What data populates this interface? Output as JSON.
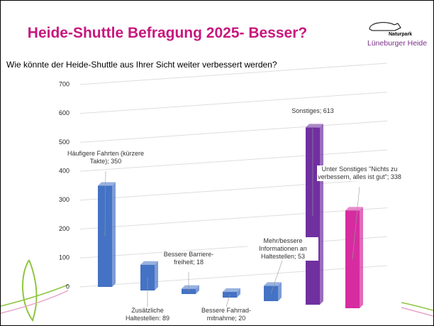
{
  "title": "Heide-Shuttle Befragung 2025- Besser?",
  "logo": {
    "line1": "Naturpark",
    "line2": "Lüneburger Heide"
  },
  "chart_data": {
    "type": "bar",
    "title": "Wie könnte der Heide-Shuttle aus Ihrer Sicht weiter verbessert werden?",
    "values": [
      350,
      89,
      18,
      20,
      53,
      613,
      338
    ],
    "value_labels": [
      "Häufigere Fahrten (kürzere Takte); 350",
      "Zusätzliche Haltestellen: 89",
      "Bessere Barriere-freiheit; 18",
      "Bessere Fahrrad-mitnahme; 20",
      "Mehr/bessere Informationen an Haltestellen; 53",
      "Sonstiges; 613",
      "Unter Sonstiges \"Nichts zu verbessern, alles ist gut\"; 338"
    ],
    "colors": [
      "#4472c4",
      "#4472c4",
      "#4472c4",
      "#4472c4",
      "#4472c4",
      "#7030a0",
      "#d62ca0"
    ],
    "ylim": [
      0,
      700
    ],
    "yticks": [
      0,
      100,
      200,
      300,
      400,
      500,
      600,
      700
    ],
    "grid": true
  }
}
